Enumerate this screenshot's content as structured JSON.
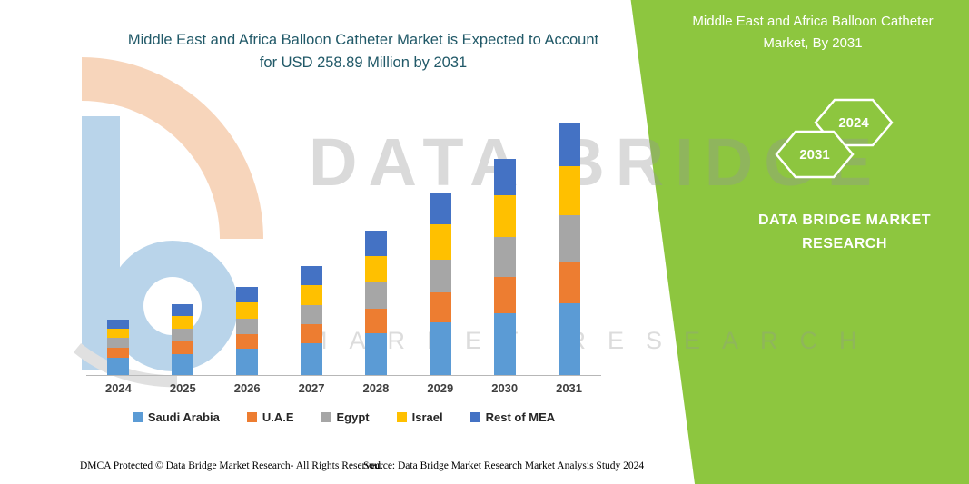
{
  "header": {
    "title_line1": "Middle East and Africa Balloon Catheter Market is Expected to Account",
    "title_line2": "for USD 258.89 Million by 2031"
  },
  "banner": {
    "green": "#8DC63F",
    "title_line1": "Middle East and Africa Balloon Catheter",
    "title_line2": "Market, By 2031",
    "hexagon_back_label": "2024",
    "hexagon_front_label": "2031",
    "brand_line1": "DATA BRIDGE MARKET",
    "brand_line2": "RESEARCH"
  },
  "watermark": {
    "line1": "DATA BRIDGE",
    "line2": "MARKET RESEARCH"
  },
  "footer": {
    "dmca": "DMCA Protected © Data Bridge Market Research-  All Rights Reserved.",
    "source": "Source: Data Bridge Market Research  Market Analysis Study 2024"
  },
  "chart_data": {
    "type": "bar",
    "subtype": "stacked",
    "title": "Middle East and Africa Balloon Catheter Market is Expected to Account for USD 258.89 Million by 2031",
    "unit": "USD Million",
    "categories": [
      "2024",
      "2025",
      "2026",
      "2027",
      "2028",
      "2029",
      "2030",
      "2031"
    ],
    "series": [
      {
        "name": "Saudi Arabia",
        "color": "#5B9BD5",
        "values": [
          18,
          22,
          27,
          33,
          43,
          54,
          64,
          74
        ]
      },
      {
        "name": "U.A.E",
        "color": "#ED7D31",
        "values": [
          10,
          13,
          15,
          19,
          25,
          31,
          37,
          43
        ]
      },
      {
        "name": "Egypt",
        "color": "#A6A6A6",
        "values": [
          10,
          13,
          16,
          20,
          27,
          34,
          41,
          48
        ]
      },
      {
        "name": "Israel",
        "color": "#FFC000",
        "values": [
          10,
          13,
          17,
          21,
          28,
          36,
          43,
          50
        ]
      },
      {
        "name": "Rest of MEA",
        "color": "#4472C4",
        "values": [
          9,
          12,
          16,
          19,
          26,
          32,
          38,
          43.89
        ]
      }
    ],
    "totals": [
      57,
      73,
      91,
      112,
      149,
      187,
      223,
      258.89
    ],
    "xlabel": "",
    "ylabel": "",
    "ylim": [
      0,
      260
    ],
    "grid": false,
    "legend_position": "bottom"
  }
}
